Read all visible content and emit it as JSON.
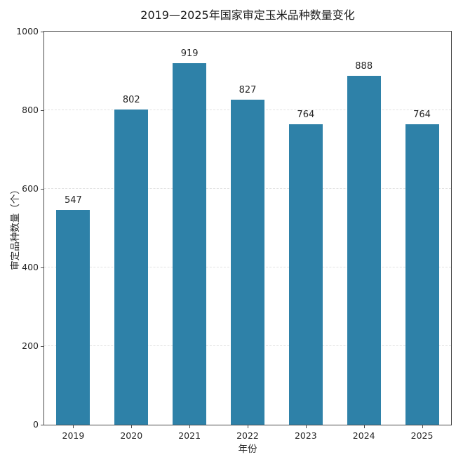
{
  "chart_data": {
    "type": "bar",
    "title": "2019—2025年国家审定玉米品种数量变化",
    "xlabel": "年份",
    "ylabel": "审定品种数量（个）",
    "categories": [
      "2019",
      "2020",
      "2021",
      "2022",
      "2023",
      "2024",
      "2025"
    ],
    "values": [
      547,
      802,
      919,
      827,
      764,
      888,
      764
    ],
    "data_labels": [
      "547",
      "802",
      "919",
      "827",
      "764",
      "888",
      "764"
    ],
    "ylim": [
      0,
      1000
    ],
    "yticks": [
      0,
      200,
      400,
      600,
      800,
      1000
    ],
    "gridlines": [
      200,
      400,
      600,
      800
    ],
    "grid_style": "dashed horizontal",
    "legend": "none",
    "colors": {
      "bar": "#2E81A8",
      "background": "#ffffff",
      "grid": "#e2e2e2",
      "spine": "#4a4a4a",
      "text": "#262626"
    }
  }
}
